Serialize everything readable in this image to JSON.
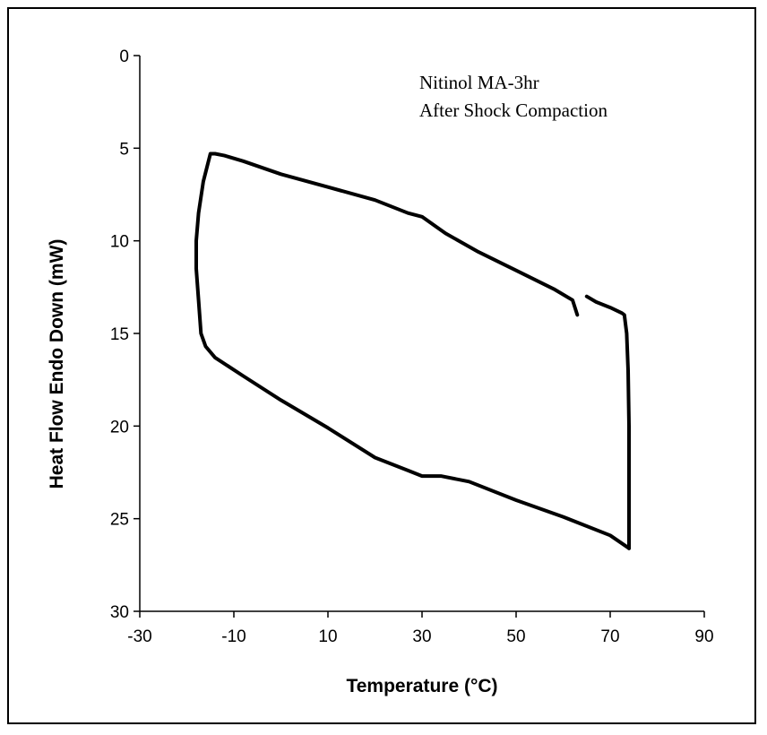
{
  "chart_data": {
    "type": "line",
    "title": "",
    "annotations": [
      "Nitinol MA-3hr",
      "After Shock Compaction"
    ],
    "xlabel": "Temperature (°C)",
    "ylabel": "Heat Flow Endo Down (mW)",
    "xlim": [
      -30,
      90
    ],
    "ylim": [
      0,
      30
    ],
    "y_inverted": true,
    "x_ticks": [
      -30,
      -10,
      10,
      30,
      50,
      70,
      90
    ],
    "y_ticks": [
      0,
      5,
      10,
      15,
      20,
      25,
      30
    ],
    "grid": false,
    "legend": "none",
    "line_color": "#000000",
    "series": [
      {
        "segment": "heating",
        "x": [
          63,
          62,
          58,
          50,
          42,
          35,
          30,
          27,
          20,
          10,
          0,
          -8,
          -12,
          -14,
          -15,
          -16.5,
          -17.5,
          -18,
          -18,
          -17.5,
          -17,
          -16,
          -14,
          -8,
          0,
          10,
          20,
          27,
          30,
          34,
          40,
          50,
          60,
          70,
          74
        ],
        "y": [
          14.0,
          13.2,
          12.6,
          11.6,
          10.6,
          9.6,
          8.7,
          8.5,
          7.8,
          7.1,
          6.4,
          5.7,
          5.4,
          5.3,
          5.3,
          6.8,
          8.5,
          10.0,
          11.5,
          13.2,
          15.0,
          15.7,
          16.3,
          17.3,
          18.6,
          20.1,
          21.7,
          22.4,
          22.7,
          22.7,
          23.0,
          24.0,
          24.9,
          25.9,
          26.6
        ]
      },
      {
        "segment": "cooling",
        "x": [
          74,
          74,
          74,
          73.8,
          73.5,
          73,
          72.5,
          70,
          67,
          65
        ],
        "y": [
          26.6,
          23.0,
          20.0,
          17.0,
          15.0,
          14.0,
          13.9,
          13.6,
          13.3,
          13.0
        ]
      }
    ]
  }
}
